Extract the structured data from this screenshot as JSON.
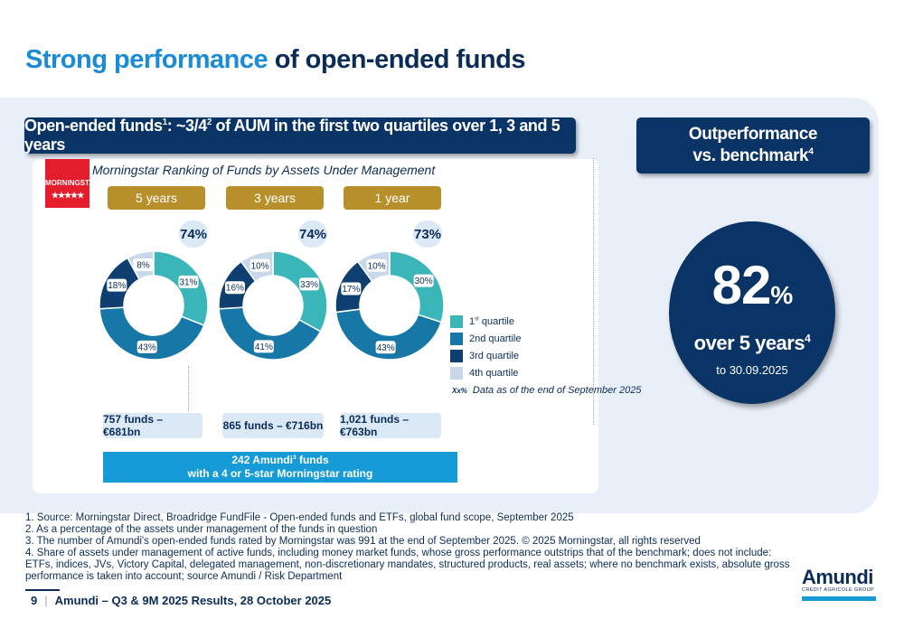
{
  "title": {
    "highlight": "Strong performance",
    "rest": "of open-ended funds"
  },
  "left_header": {
    "text_a": "Open-ended funds",
    "sup_a": "1",
    "text_b": ": ~3/4",
    "sup_b": "2",
    "text_c": " of AUM in the first two quartiles over 1, 3 and 5 years"
  },
  "right_header": {
    "line1": "Outperformance",
    "line2": "vs. benchmark",
    "sup": "4"
  },
  "morningstar": {
    "logo_text": "MORNINGSTAR",
    "stars": "★★★★★",
    "caption": "Morningstar Ranking of Funds by Assets Under Management"
  },
  "colors": {
    "q1": "#3ab5b8",
    "q2": "#1778a8",
    "q3": "#0f3f70",
    "q4": "#c8d8ea"
  },
  "chart_data": {
    "type": "donut",
    "title": "Morningstar Ranking of Funds by Assets Under Management",
    "legend": [
      "1st quartile",
      "2nd quartile",
      "3rd quartile",
      "4th quartile"
    ],
    "charts": [
      {
        "period": "5 years",
        "top_two_quartiles": "74%",
        "values": [
          31,
          43,
          18,
          8
        ],
        "labels": [
          "31%",
          "43%",
          "18%",
          "8%"
        ],
        "funds": "757 funds – €681bn"
      },
      {
        "period": "3 years",
        "top_two_quartiles": "74%",
        "values": [
          33,
          41,
          16,
          10
        ],
        "labels": [
          "33%",
          "41%",
          "16%",
          "10%"
        ],
        "funds": "865 funds – €716bn"
      },
      {
        "period": "1 year",
        "top_two_quartiles": "73%",
        "values": [
          30,
          43,
          17,
          10
        ],
        "labels": [
          "30%",
          "43%",
          "17%",
          "10%"
        ],
        "funds": "1,021 funds – €763bn"
      }
    ]
  },
  "legend_labels": {
    "q1_pre": "1",
    "q1_sup": "st",
    "q1_post": " quartile",
    "q2": "2nd quartile",
    "q3": "3rd quartile",
    "q4": "4th quartile"
  },
  "note": {
    "tag": "Xx%",
    "text": "Data as of the end of September 2025"
  },
  "amundi_funds": {
    "line1_a": "242 Amundi",
    "line1_sup": "3",
    "line1_b": " funds",
    "line2": "with a 4 or 5-star Morningstar rating"
  },
  "outperformance": {
    "value": "82",
    "unit": "%",
    "over": "over 5 years",
    "over_sup": "4",
    "date": "to 30.09.2025"
  },
  "footnotes": [
    "1. Source: Morningstar Direct, Broadridge FundFile - Open-ended funds and ETFs, global fund scope, September 2025",
    "2. As a percentage of the assets under management of the funds in question",
    "3. The number of Amundi's open-ended funds rated by Morningstar was 991 at the end of September 2025. © 2025 Morningstar, all rights reserved",
    "4. Share of assets under management of active funds, including money market funds, whose gross performance outstrips that of the benchmark; does not include: ETFs, indices, JVs, Victory Capital, delegated management, non-discretionary mandates, structured products, real assets; where no benchmark exists, absolute gross performance is taken into account; source Amundi / Risk Department"
  ],
  "footer": {
    "page": "9",
    "sep": "|",
    "text": "Amundi – Q3 & 9M 2025 Results, 28 October 2025"
  },
  "brand": {
    "name": "Amundi",
    "sub": "CREDIT AGRICOLE GROUP"
  }
}
